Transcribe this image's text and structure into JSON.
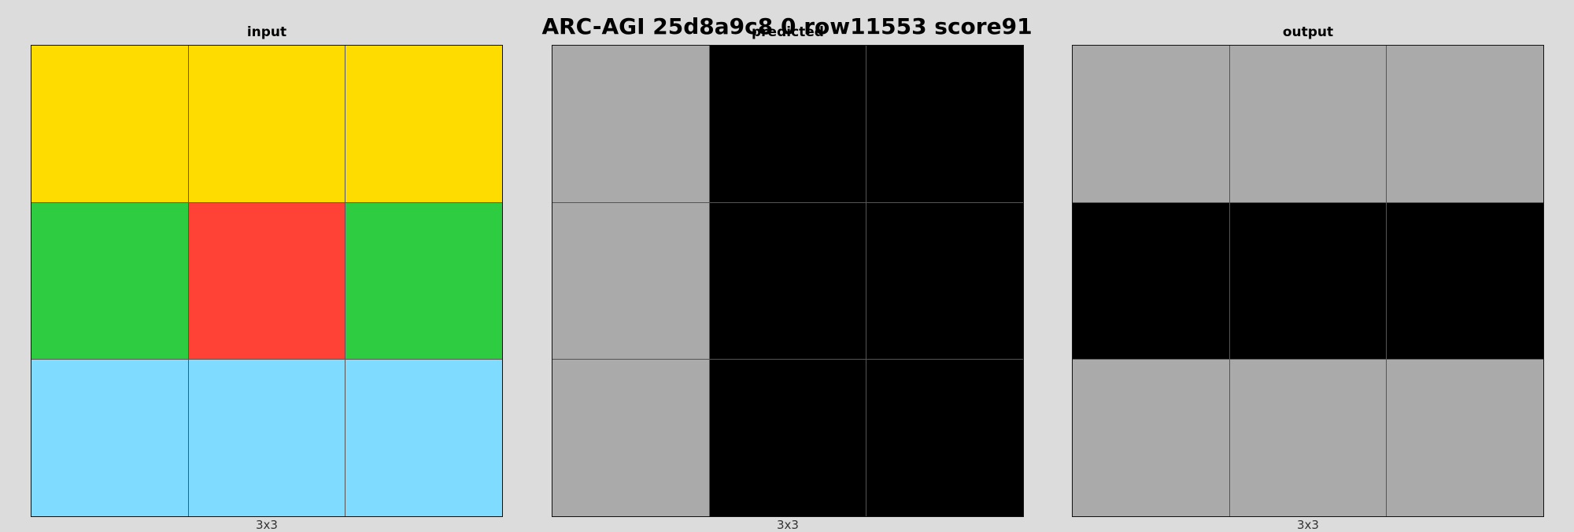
{
  "title": "ARC-AGI 25d8a9c8 0 row11553 score91",
  "palette": {
    "0": "#000000",
    "2": "#ff4136",
    "3": "#2ecc40",
    "4": "#ffdc00",
    "5": "#aaaaaa",
    "8": "#7fdbff"
  },
  "panels": [
    {
      "label": "input",
      "dims": "3x3",
      "grid": [
        [
          4,
          4,
          4
        ],
        [
          3,
          2,
          3
        ],
        [
          8,
          8,
          8
        ]
      ]
    },
    {
      "label": "predicted",
      "dims": "3x3",
      "grid": [
        [
          5,
          0,
          0
        ],
        [
          5,
          0,
          0
        ],
        [
          5,
          0,
          0
        ]
      ]
    },
    {
      "label": "output",
      "dims": "3x3",
      "grid": [
        [
          5,
          5,
          5
        ],
        [
          0,
          0,
          0
        ],
        [
          5,
          5,
          5
        ]
      ]
    }
  ]
}
